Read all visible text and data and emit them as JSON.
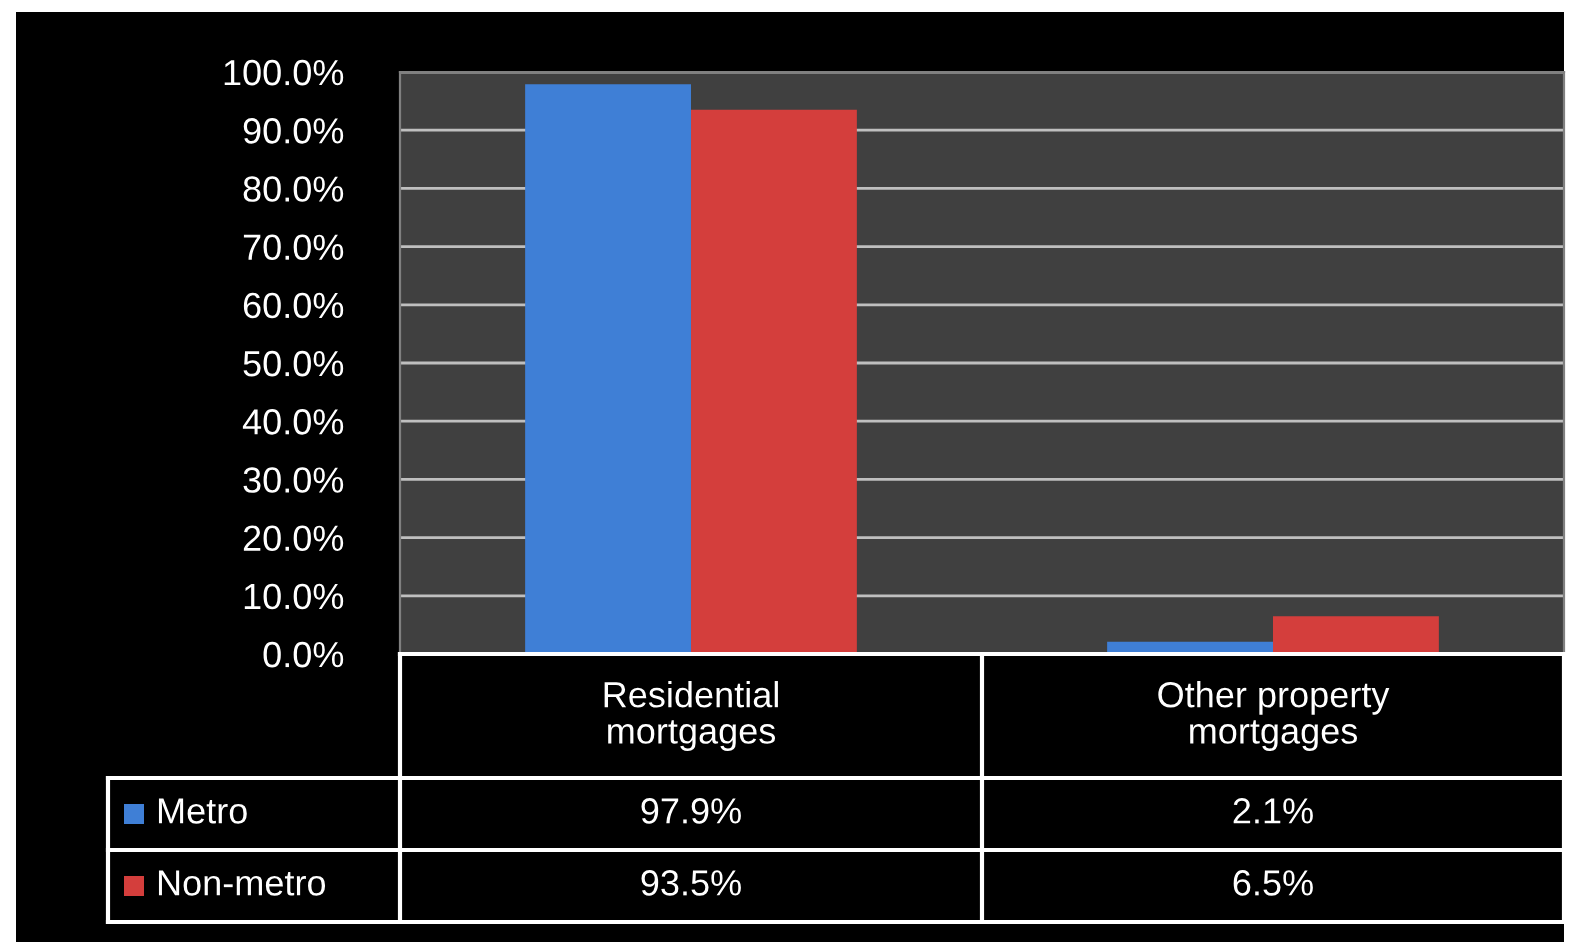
{
  "chart_data": {
    "type": "bar",
    "categories": [
      "Residential\nmortgages",
      "Other property\nmortgages"
    ],
    "series": [
      {
        "name": "Metro",
        "color": "#3f7fd6",
        "values": [
          97.9,
          2.1
        ],
        "value_labels": [
          "97.9%",
          "2.1%"
        ]
      },
      {
        "name": "Non-metro",
        "color": "#d43e3c",
        "values": [
          93.5,
          6.5
        ],
        "value_labels": [
          "93.5%",
          "6.5%"
        ]
      }
    ],
    "ylim": [
      0,
      100
    ],
    "yticks": [
      {
        "value": 0,
        "label": "0.0%"
      },
      {
        "value": 10,
        "label": "10.0%"
      },
      {
        "value": 20,
        "label": "20.0%"
      },
      {
        "value": 30,
        "label": "30.0%"
      },
      {
        "value": 40,
        "label": "40.0%"
      },
      {
        "value": 50,
        "label": "50.0%"
      },
      {
        "value": 60,
        "label": "60.0%"
      },
      {
        "value": 70,
        "label": "70.0%"
      },
      {
        "value": 80,
        "label": "80.0%"
      },
      {
        "value": 90,
        "label": "90.0%"
      },
      {
        "value": 100,
        "label": "100.0%"
      }
    ],
    "grid": "y",
    "legend": "bottom"
  }
}
